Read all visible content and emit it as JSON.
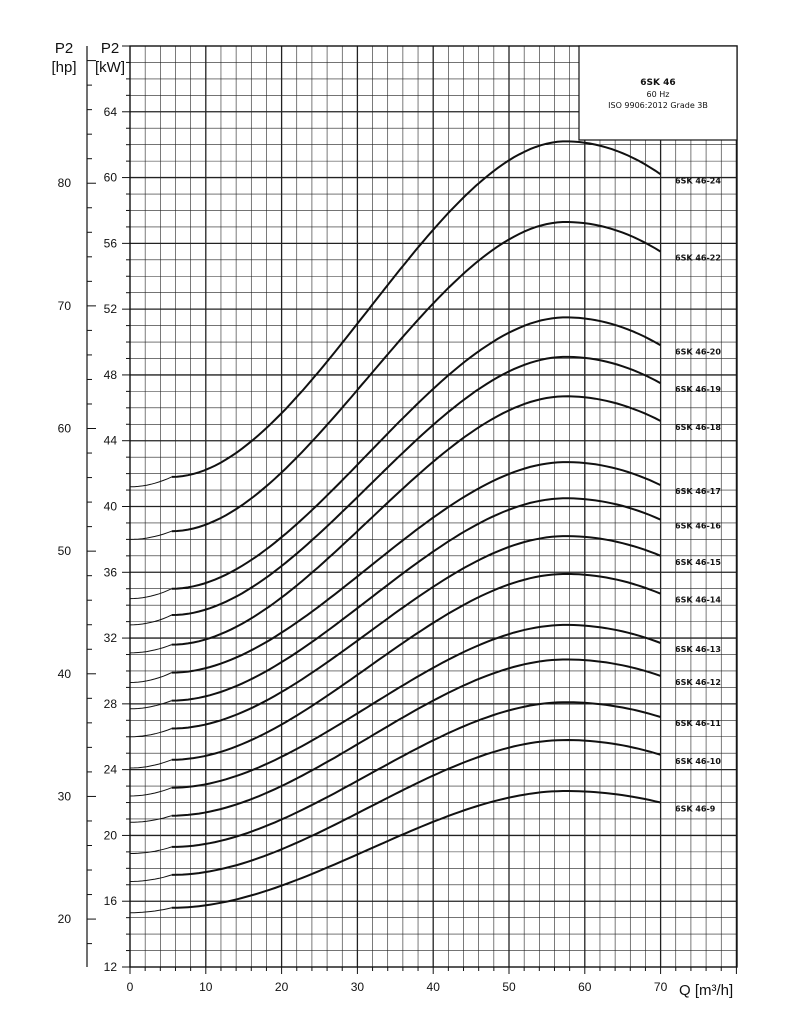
{
  "chart_data": {
    "type": "line",
    "title": "6SK 46",
    "info_lines": [
      "60 Hz",
      "ISO 9906:2012 Grade 3B"
    ],
    "xlabel": "Q [m³/h]",
    "ylabel_left": "P2 [hp]",
    "ylabel_right": "P2 [kW]",
    "y_left_title_line1": "P2",
    "y_left_title_line2": "[hp]",
    "y_right_title_line1": "P2",
    "y_right_title_line2": "[kW]",
    "xlim": [
      0,
      80
    ],
    "ylim": [
      12,
      68
    ],
    "xticks": [
      "0",
      "10",
      "20",
      "30",
      "40",
      "50",
      "60",
      "70"
    ],
    "yticks_kw": [
      "12",
      "16",
      "20",
      "24",
      "28",
      "32",
      "36",
      "40",
      "44",
      "48",
      "52",
      "56",
      "60",
      "64"
    ],
    "yticks_hp": [
      "20",
      "30",
      "40",
      "50",
      "60",
      "70",
      "80"
    ],
    "grid": true,
    "series": [
      {
        "name": "6SK 46-24",
        "q_start": 5.5,
        "q_end": 70,
        "q_peak": 57.5,
        "p_at_zero": 41.2,
        "p_start": 41.8,
        "p_peak": 62.2,
        "p_end": 60.2
      },
      {
        "name": "6SK 46-22",
        "q_start": 5.5,
        "q_end": 70,
        "q_peak": 57.5,
        "p_at_zero": 38.0,
        "p_start": 38.5,
        "p_peak": 57.3,
        "p_end": 55.5
      },
      {
        "name": "6SK 46-20",
        "q_start": 5.5,
        "q_end": 70,
        "q_peak": 57.5,
        "p_at_zero": 34.4,
        "p_start": 35.0,
        "p_peak": 51.5,
        "p_end": 49.8
      },
      {
        "name": "6SK 46-19",
        "q_start": 5.5,
        "q_end": 70,
        "q_peak": 57.5,
        "p_at_zero": 32.8,
        "p_start": 33.4,
        "p_peak": 49.1,
        "p_end": 47.5
      },
      {
        "name": "6SK 46-18",
        "q_start": 5.5,
        "q_end": 70,
        "q_peak": 57.5,
        "p_at_zero": 31.1,
        "p_start": 31.6,
        "p_peak": 46.7,
        "p_end": 45.2
      },
      {
        "name": "6SK 46-17",
        "q_start": 5.5,
        "q_end": 70,
        "q_peak": 57.5,
        "p_at_zero": 29.3,
        "p_start": 29.9,
        "p_peak": 42.7,
        "p_end": 41.3
      },
      {
        "name": "6SK 46-16",
        "q_start": 5.5,
        "q_end": 70,
        "q_peak": 57.5,
        "p_at_zero": 27.7,
        "p_start": 28.2,
        "p_peak": 40.5,
        "p_end": 39.2
      },
      {
        "name": "6SK 46-15",
        "q_start": 5.5,
        "q_end": 70,
        "q_peak": 57.5,
        "p_at_zero": 26.0,
        "p_start": 26.5,
        "p_peak": 38.2,
        "p_end": 37.0
      },
      {
        "name": "6SK 46-14",
        "q_start": 5.5,
        "q_end": 70,
        "q_peak": 57.5,
        "p_at_zero": 24.1,
        "p_start": 24.6,
        "p_peak": 35.9,
        "p_end": 34.7
      },
      {
        "name": "6SK 46-13",
        "q_start": 5.5,
        "q_end": 70,
        "q_peak": 57.5,
        "p_at_zero": 22.4,
        "p_start": 22.9,
        "p_peak": 32.8,
        "p_end": 31.7
      },
      {
        "name": "6SK 46-12",
        "q_start": 5.5,
        "q_end": 70,
        "q_peak": 57.5,
        "p_at_zero": 20.8,
        "p_start": 21.2,
        "p_peak": 30.7,
        "p_end": 29.7
      },
      {
        "name": "6SK 46-11",
        "q_start": 5.5,
        "q_end": 70,
        "q_peak": 57.5,
        "p_at_zero": 18.9,
        "p_start": 19.3,
        "p_peak": 28.1,
        "p_end": 27.2
      },
      {
        "name": "6SK 46-10",
        "q_start": 5.5,
        "q_end": 70,
        "q_peak": 57.5,
        "p_at_zero": 17.2,
        "p_start": 17.6,
        "p_peak": 25.8,
        "p_end": 24.9
      },
      {
        "name": "6SK 46-9",
        "q_start": 5.5,
        "q_end": 70,
        "q_peak": 57.5,
        "p_at_zero": 15.3,
        "p_start": 15.6,
        "p_peak": 22.7,
        "p_end": 22.0
      }
    ]
  },
  "colors": {
    "curve": "#111111",
    "grid": "#222222",
    "background": "#ffffff"
  }
}
